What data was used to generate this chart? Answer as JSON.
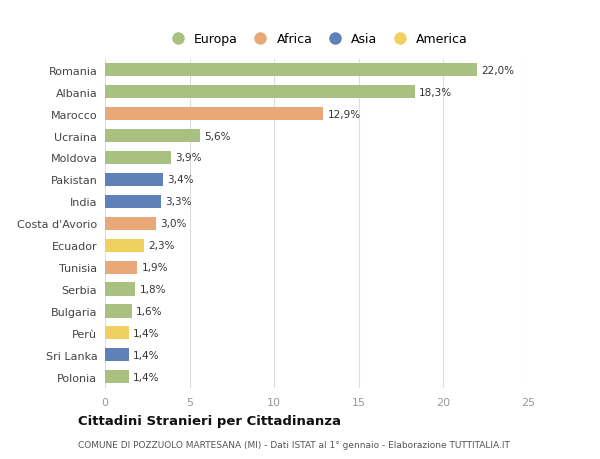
{
  "countries": [
    "Romania",
    "Albania",
    "Marocco",
    "Ucraina",
    "Moldova",
    "Pakistan",
    "India",
    "Costa d'Avorio",
    "Ecuador",
    "Tunisia",
    "Serbia",
    "Bulgaria",
    "Perù",
    "Sri Lanka",
    "Polonia"
  ],
  "values": [
    22.0,
    18.3,
    12.9,
    5.6,
    3.9,
    3.4,
    3.3,
    3.0,
    2.3,
    1.9,
    1.8,
    1.6,
    1.4,
    1.4,
    1.4
  ],
  "labels": [
    "22,0%",
    "18,3%",
    "12,9%",
    "5,6%",
    "3,9%",
    "3,4%",
    "3,3%",
    "3,0%",
    "2,3%",
    "1,9%",
    "1,8%",
    "1,6%",
    "1,4%",
    "1,4%",
    "1,4%"
  ],
  "continents": [
    "Europa",
    "Europa",
    "Africa",
    "Europa",
    "Europa",
    "Asia",
    "Asia",
    "Africa",
    "America",
    "Africa",
    "Europa",
    "Europa",
    "America",
    "Asia",
    "Europa"
  ],
  "continent_colors": {
    "Europa": "#a8c080",
    "Africa": "#e8a878",
    "Asia": "#6080b8",
    "America": "#f0d060"
  },
  "xlim": [
    0,
    25
  ],
  "xticks": [
    0,
    5,
    10,
    15,
    20,
    25
  ],
  "background_color": "#ffffff",
  "plot_bg_color": "#ffffff",
  "title": "Cittadini Stranieri per Cittadinanza",
  "subtitle": "COMUNE DI POZZUOLO MARTESANA (MI) - Dati ISTAT al 1° gennaio - Elaborazione TUTTITALIA.IT",
  "bar_height": 0.6,
  "legend_order": [
    "Europa",
    "Africa",
    "Asia",
    "America"
  ]
}
